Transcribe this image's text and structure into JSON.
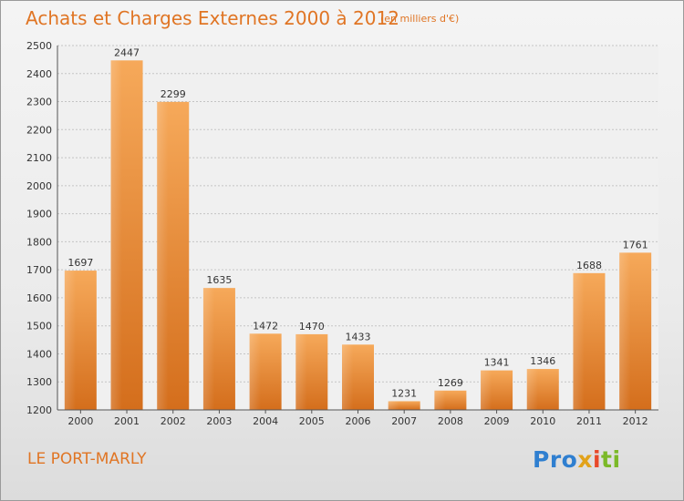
{
  "header": {
    "title": "Achats et Charges Externes 2000 à 2012",
    "subtitle": "(en milliers d'€)"
  },
  "footer": {
    "place": "LE PORT-MARLY",
    "brand_parts": [
      "Pro",
      "x",
      "i",
      "ti"
    ]
  },
  "colors": {
    "bar_light": "#f6a95a",
    "bar_dark": "#d46e1c",
    "accent": "#e07524",
    "axis": "#555555"
  },
  "chart_data": {
    "type": "bar",
    "title": "Achats et Charges Externes 2000 à 2012",
    "subtitle": "(en milliers d'€)",
    "categories": [
      "2000",
      "2001",
      "2002",
      "2003",
      "2004",
      "2005",
      "2006",
      "2007",
      "2008",
      "2009",
      "2010",
      "2011",
      "2012"
    ],
    "values": [
      1697,
      2447,
      2299,
      1635,
      1472,
      1470,
      1433,
      1231,
      1269,
      1341,
      1346,
      1688,
      1761
    ],
    "ylim": [
      1200,
      2500
    ],
    "yticks": [
      1200,
      1300,
      1400,
      1500,
      1600,
      1700,
      1800,
      1900,
      2000,
      2100,
      2200,
      2300,
      2400,
      2500
    ],
    "grid": true,
    "xlabel": "",
    "ylabel": ""
  }
}
